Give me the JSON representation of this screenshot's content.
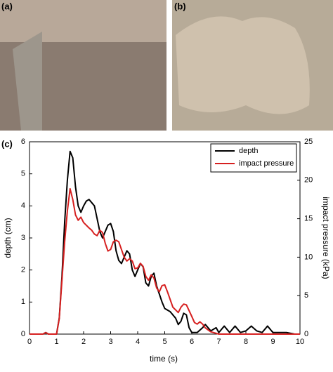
{
  "panel_labels": [
    "(a)",
    "(b)"
  ],
  "chart_data": {
    "type": "line",
    "panel_label": "(c)",
    "xlabel": "time (s)",
    "ylabel": "depth (cm)",
    "y2label": "impact pressure (kPa)",
    "xlim": [
      0,
      10
    ],
    "xticks": [
      0,
      1,
      2,
      3,
      4,
      5,
      6,
      7,
      8,
      9,
      10
    ],
    "ylim": [
      0,
      6
    ],
    "yticks": [
      0,
      1,
      2,
      3,
      4,
      5,
      6
    ],
    "y2lim": [
      0,
      25
    ],
    "y2ticks": [
      0,
      5,
      10,
      15,
      20,
      25
    ],
    "legend": "upper right",
    "series": [
      {
        "name": "depth",
        "color": "#000000",
        "x": [
          0,
          0.5,
          0.6,
          0.7,
          1.0,
          1.1,
          1.2,
          1.3,
          1.4,
          1.5,
          1.6,
          1.7,
          1.8,
          1.9,
          2.0,
          2.1,
          2.2,
          2.4,
          2.5,
          2.6,
          2.7,
          2.8,
          2.9,
          3.0,
          3.1,
          3.2,
          3.3,
          3.4,
          3.5,
          3.6,
          3.7,
          3.8,
          3.9,
          4.0,
          4.1,
          4.2,
          4.3,
          4.4,
          4.5,
          4.6,
          4.7,
          4.9,
          5.0,
          5.2,
          5.4,
          5.5,
          5.6,
          5.7,
          5.8,
          5.9,
          6.0,
          6.2,
          6.4,
          6.5,
          6.7,
          6.9,
          7.0,
          7.2,
          7.4,
          7.6,
          7.8,
          8.0,
          8.2,
          8.4,
          8.6,
          8.8,
          9.0,
          9.2,
          9.5,
          9.8
        ],
        "values": [
          0,
          0,
          0.05,
          0,
          0,
          0.5,
          1.8,
          3.5,
          4.8,
          5.7,
          5.5,
          4.6,
          4.0,
          3.8,
          4.0,
          4.15,
          4.2,
          4.0,
          3.6,
          3.2,
          3.0,
          3.2,
          3.4,
          3.45,
          3.2,
          2.6,
          2.3,
          2.2,
          2.4,
          2.6,
          2.5,
          2.0,
          1.8,
          2.0,
          2.2,
          2.1,
          1.6,
          1.5,
          1.8,
          1.9,
          1.5,
          1.0,
          0.8,
          0.7,
          0.5,
          0.3,
          0.4,
          0.65,
          0.6,
          0.2,
          0.05,
          0.05,
          0.2,
          0.3,
          0.1,
          0.2,
          0.05,
          0.25,
          0.05,
          0.25,
          0.05,
          0.1,
          0.25,
          0.1,
          0.05,
          0.25,
          0.05,
          0.05,
          0.05,
          0
        ]
      },
      {
        "name": "impact pressure",
        "color": "#d62020",
        "axis": "y2",
        "x": [
          0,
          0.5,
          0.6,
          0.7,
          1.0,
          1.1,
          1.2,
          1.3,
          1.4,
          1.5,
          1.6,
          1.7,
          1.8,
          1.9,
          2.0,
          2.2,
          2.3,
          2.4,
          2.5,
          2.6,
          2.7,
          2.8,
          2.9,
          3.0,
          3.1,
          3.2,
          3.3,
          3.4,
          3.5,
          3.6,
          3.7,
          3.8,
          3.9,
          4.0,
          4.1,
          4.2,
          4.3,
          4.4,
          4.5,
          4.6,
          4.7,
          4.8,
          4.9,
          5.0,
          5.1,
          5.3,
          5.5,
          5.6,
          5.7,
          5.8,
          6.0,
          6.1,
          6.2,
          6.3,
          6.4,
          6.5,
          6.7,
          7.0,
          10
        ],
        "values": [
          0,
          0,
          0.2,
          0,
          0,
          2,
          7,
          12,
          16,
          18.9,
          17.5,
          15.5,
          14.8,
          15.2,
          14.5,
          13.8,
          13.5,
          13.0,
          12.8,
          13.5,
          13.2,
          11.8,
          10.8,
          11.0,
          12.0,
          12.2,
          12.0,
          11.0,
          10.0,
          9.5,
          9.8,
          9.5,
          8.5,
          8.6,
          9.2,
          8.8,
          7.5,
          7.0,
          7.7,
          7.3,
          6.0,
          5.5,
          6.3,
          6.4,
          5.5,
          3.5,
          2.8,
          3.5,
          3.9,
          3.8,
          2.3,
          1.5,
          1.3,
          1.6,
          1.3,
          0.8,
          0.3,
          0,
          0
        ]
      }
    ]
  }
}
